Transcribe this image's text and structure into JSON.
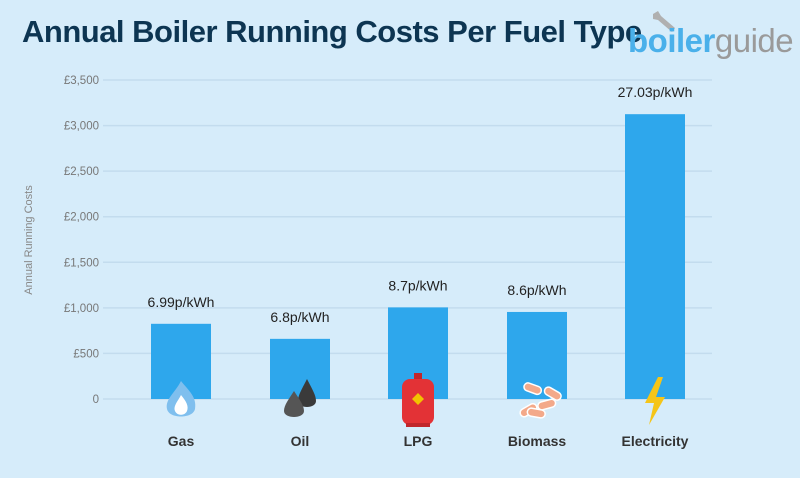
{
  "colors": {
    "background": "#d6ecfa",
    "bar": "#2ea7ec",
    "title": "#0d3552",
    "grid": "#c3dcee"
  },
  "logo": {
    "part1": "boiler",
    "part2": "guide"
  },
  "chart_data": {
    "type": "bar",
    "title": "Annual Boiler Running Costs Per Fuel Type",
    "xlabel": "",
    "ylabel": "Annual Running Costs",
    "ylim": [
      0,
      3500
    ],
    "yticks": [
      0,
      500,
      1000,
      1500,
      2000,
      2500,
      3000,
      3500
    ],
    "ytick_labels": [
      "0",
      "£500",
      "£1,000",
      "£1,500",
      "£2,000",
      "£2,500",
      "£3,000",
      "£3,500"
    ],
    "grid": true,
    "categories": [
      "Gas",
      "Oil",
      "LPG",
      "Biomass",
      "Electricity"
    ],
    "values": [
      825,
      660,
      1005,
      955,
      3125
    ],
    "data_labels": [
      "6.99p/kWh",
      "6.8p/kWh",
      "8.7p/kWh",
      "8.6p/kWh",
      "27.03p/kWh"
    ],
    "icons": [
      "flame-icon",
      "oil-drops-icon",
      "gas-cylinder-icon",
      "wood-pellets-icon",
      "lightning-bolt-icon"
    ]
  }
}
